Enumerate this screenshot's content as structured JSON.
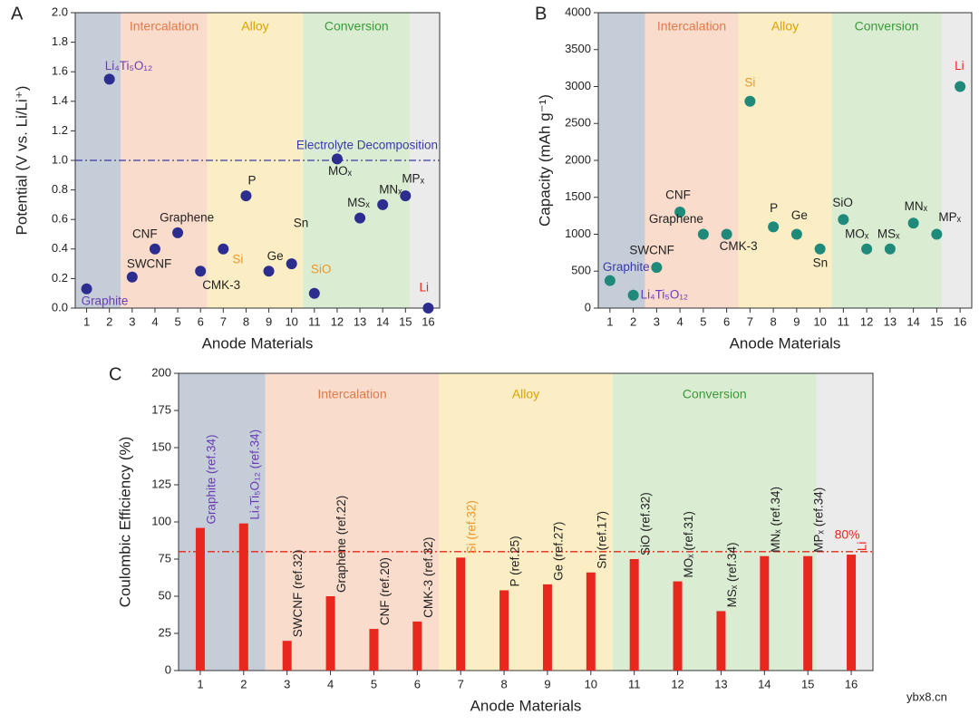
{
  "chart_data": [
    {
      "type": "scatter",
      "panel": "A",
      "xlabel": "Anode Materials",
      "ylabel": "Potential (V vs. Li/Li⁺)",
      "x": [
        1,
        2,
        3,
        4,
        5,
        6,
        7,
        8,
        9,
        10,
        11,
        12,
        13,
        14,
        15,
        16
      ],
      "values": [
        0.13,
        1.55,
        0.21,
        0.4,
        0.51,
        0.25,
        0.4,
        0.76,
        0.25,
        0.3,
        0.1,
        1.01,
        0.61,
        0.7,
        0.76,
        0.0
      ],
      "point_labels": [
        "Graphite",
        "Li₄Ti₅O₁₂",
        "SWCNF",
        "CNF",
        "Graphene",
        "CMK-3",
        "Si",
        "P",
        "Ge",
        "Sn",
        "SiO",
        "MOₓ",
        "MSₓ",
        "MNₓ",
        "MPₓ",
        "Li"
      ],
      "label_colors": [
        "#6a3db5",
        "#6a3db5",
        "#222",
        "#222",
        "#222",
        "#222",
        "#f0962a",
        "#222",
        "#222",
        "#222",
        "#f0962a",
        "#222",
        "#222",
        "#222",
        "#222",
        "#e8281e"
      ],
      "color": "#2d2d8f",
      "xlim": [
        0.5,
        16.5
      ],
      "xticks": [
        1,
        2,
        3,
        4,
        5,
        6,
        7,
        8,
        9,
        10,
        11,
        12,
        13,
        14,
        15,
        16
      ],
      "ylim": [
        0,
        2
      ],
      "yticks": [
        {
          "value": 0,
          "label": "0.0"
        },
        0.2,
        0.4,
        0.6,
        0.8,
        {
          "value": 1,
          "label": "1.0"
        },
        1.2,
        1.4,
        1.6,
        1.8,
        {
          "value": 2,
          "label": "2.0"
        }
      ],
      "regions": [
        {
          "start": 0.5,
          "end": 2.5,
          "color": "#c5cdd8"
        },
        {
          "name": "Intercalation",
          "start": 2.5,
          "end": 6.3,
          "color": "#f9dccb",
          "label_color": "#e07a4a"
        },
        {
          "name": "Alloy",
          "start": 6.3,
          "end": 10.5,
          "color": "#fbeec4",
          "label_color": "#d9a300"
        },
        {
          "name": "Conversion",
          "start": 10.5,
          "end": 15.2,
          "color": "#daedd2",
          "label_color": "#3a9a3a"
        },
        {
          "start": 15.2,
          "end": 16.5,
          "color": "#ebebeb"
        }
      ],
      "hline": {
        "value": 1.0,
        "label": "Electrolyte Decomposition",
        "color": "#3a3aa8"
      }
    },
    {
      "type": "scatter",
      "panel": "B",
      "xlabel": "Anode Materials",
      "ylabel": "Capacity (mAh g⁻¹)",
      "x": [
        1,
        2,
        3,
        4,
        5,
        6,
        7,
        8,
        9,
        10,
        11,
        12,
        13,
        14,
        15,
        16
      ],
      "values": [
        372,
        175,
        550,
        1300,
        1000,
        1000,
        2800,
        1100,
        1000,
        800,
        1200,
        800,
        800,
        1150,
        1000,
        3000
      ],
      "point_labels": [
        "Graphite",
        "Li₄Ti₅O₁₂",
        "SWCNF",
        "CNF",
        "Graphene",
        "CMK-3",
        "Si",
        "P",
        "Ge",
        "Sn",
        "SiO",
        "MOₓ",
        "MSₓ",
        "MNₓ",
        "MPₓ",
        "Li"
      ],
      "label_colors": [
        "#3a3aa8",
        "#6a3db5",
        "#222",
        "#222",
        "#222",
        "#222",
        "#f0962a",
        "#222",
        "#222",
        "#222",
        "#222",
        "#222",
        "#222",
        "#222",
        "#222",
        "#e8281e"
      ],
      "color": "#1f8a7a",
      "xlim": [
        0.5,
        16.5
      ],
      "xticks": [
        1,
        2,
        3,
        4,
        5,
        6,
        7,
        8,
        9,
        10,
        11,
        12,
        13,
        14,
        15,
        16
      ],
      "ylim": [
        0,
        4000
      ],
      "yticks": [
        0,
        500,
        1000,
        1500,
        2000,
        2500,
        3000,
        3500,
        4000
      ],
      "regions": [
        {
          "start": 0.5,
          "end": 2.5,
          "color": "#c5cdd8"
        },
        {
          "name": "Intercalation",
          "start": 2.5,
          "end": 6.5,
          "color": "#f9dccb",
          "label_color": "#e07a4a"
        },
        {
          "name": "Alloy",
          "start": 6.5,
          "end": 10.5,
          "color": "#fbeec4",
          "label_color": "#d9a300"
        },
        {
          "name": "Conversion",
          "start": 10.5,
          "end": 15.2,
          "color": "#daedd2",
          "label_color": "#3a9a3a"
        },
        {
          "start": 15.2,
          "end": 16.5,
          "color": "#ebebeb"
        }
      ]
    },
    {
      "type": "bar",
      "panel": "C",
      "xlabel": "Anode Materials",
      "ylabel": "Coulombic Efficiency (%)",
      "x": [
        1,
        2,
        3,
        4,
        5,
        6,
        7,
        8,
        9,
        10,
        11,
        12,
        13,
        14,
        15,
        16
      ],
      "values": [
        96,
        99,
        20,
        50,
        28,
        33,
        76,
        54,
        58,
        66,
        75,
        60,
        40,
        77,
        77,
        78
      ],
      "bar_labels": [
        "Graphite (ref.34)",
        "Li₄Ti₅O₁₂ (ref.34)",
        "SWCNF (ref.32)",
        "Graphene (ref.22)",
        "CNF (ref.20)",
        "CMK-3 (ref.32)",
        "Si (ref.32)",
        "P (ref.25)",
        "Ge (ref.27)",
        "Sn (ref.17)",
        "SiO (ref.32)",
        "MOₓ (ref.31)",
        "MSₓ (ref.34)",
        "MNₓ (ref.34)",
        "MPₓ (ref.34)",
        "Li"
      ],
      "label_colors": [
        "#6a3db5",
        "#6a3db5",
        "#222",
        "#222",
        "#222",
        "#222",
        "#f0962a",
        "#222",
        "#222",
        "#222",
        "#222",
        "#222",
        "#222",
        "#222",
        "#222",
        "#e8281e"
      ],
      "color": "#e8281e",
      "xlim": [
        0.5,
        16.5
      ],
      "xticks": [
        1,
        2,
        3,
        4,
        5,
        6,
        7,
        8,
        9,
        10,
        11,
        12,
        13,
        14,
        15,
        16
      ],
      "ylim": [
        0,
        200
      ],
      "yticks": [
        0,
        25,
        50,
        75,
        100,
        125,
        150,
        175,
        200
      ],
      "regions": [
        {
          "start": 0.5,
          "end": 2.5,
          "color": "#c5cdd8"
        },
        {
          "name": "Intercalation",
          "start": 2.5,
          "end": 6.5,
          "color": "#f9dccb",
          "label_color": "#e07a4a"
        },
        {
          "name": "Alloy",
          "start": 6.5,
          "end": 10.5,
          "color": "#fbeec4",
          "label_color": "#d9a300"
        },
        {
          "name": "Conversion",
          "start": 10.5,
          "end": 15.2,
          "color": "#daedd2",
          "label_color": "#3a9a3a"
        },
        {
          "start": 15.2,
          "end": 16.5,
          "color": "#ebebeb"
        }
      ],
      "hline": {
        "value": 80,
        "label": "80%",
        "color": "#e8281e"
      }
    },
    {
      "watermark": "ybx8.cn"
    }
  ]
}
